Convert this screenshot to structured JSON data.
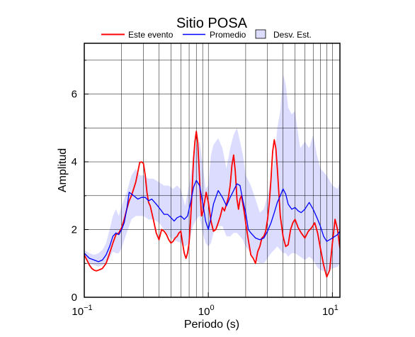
{
  "chart_data": {
    "type": "line",
    "title": "Sitio POSA",
    "xlabel": "Periodo (s)",
    "ylabel": "Amplitud",
    "x_scale": "log",
    "xlim": [
      0.1,
      11.5
    ],
    "ylim": [
      0,
      7.5
    ],
    "x_ticks": [
      {
        "value": 0.1,
        "base": "10",
        "exp": "−1"
      },
      {
        "value": 1,
        "base": "10",
        "exp": "0"
      },
      {
        "value": 10,
        "base": "10",
        "exp": "1"
      }
    ],
    "y_ticks": [
      0,
      2,
      4,
      6
    ],
    "grid": true,
    "legend_position": "top",
    "legend": {
      "este": "Este evento",
      "promedio": "Promedio",
      "desv": "Desv. Est."
    },
    "colors": {
      "este": "#ff0000",
      "promedio": "#0000ff",
      "band": "#dcdcff",
      "band_edge": "#8080c0"
    },
    "series": [
      {
        "name": "Este evento",
        "x": [
          0.1,
          0.105,
          0.11,
          0.115,
          0.12,
          0.125,
          0.13,
          0.14,
          0.15,
          0.16,
          0.17,
          0.18,
          0.19,
          0.2,
          0.21,
          0.22,
          0.23,
          0.24,
          0.25,
          0.26,
          0.27,
          0.28,
          0.29,
          0.3,
          0.31,
          0.32,
          0.33,
          0.34,
          0.36,
          0.38,
          0.4,
          0.42,
          0.44,
          0.46,
          0.48,
          0.5,
          0.52,
          0.54,
          0.56,
          0.58,
          0.6,
          0.62,
          0.64,
          0.66,
          0.68,
          0.7,
          0.72,
          0.74,
          0.76,
          0.78,
          0.8,
          0.82,
          0.84,
          0.86,
          0.88,
          0.9,
          0.93,
          0.96,
          1.0,
          1.05,
          1.1,
          1.15,
          1.2,
          1.25,
          1.3,
          1.35,
          1.4,
          1.45,
          1.5,
          1.55,
          1.6,
          1.65,
          1.7,
          1.75,
          1.8,
          1.85,
          1.9,
          1.95,
          2.0,
          2.1,
          2.2,
          2.3,
          2.4,
          2.5,
          2.6,
          2.7,
          2.8,
          2.9,
          3.0,
          3.1,
          3.2,
          3.3,
          3.4,
          3.5,
          3.6,
          3.7,
          3.8,
          4.0,
          4.2,
          4.4,
          4.6,
          4.8,
          5.0,
          5.3,
          5.6,
          6.0,
          6.4,
          6.8,
          7.2,
          7.6,
          8.0,
          8.5,
          9.0,
          9.5,
          10.0,
          10.5,
          11.0,
          11.5
        ],
        "y": [
          1.25,
          1.1,
          0.95,
          0.85,
          0.8,
          0.78,
          0.8,
          0.85,
          1.0,
          1.3,
          1.6,
          1.85,
          1.9,
          2.05,
          2.3,
          2.6,
          2.85,
          3.0,
          3.2,
          3.4,
          3.7,
          3.98,
          4.0,
          3.95,
          3.6,
          3.1,
          2.8,
          2.7,
          2.3,
          1.9,
          1.7,
          2.0,
          1.95,
          1.85,
          1.7,
          1.6,
          1.65,
          1.75,
          1.8,
          1.9,
          1.95,
          1.6,
          1.3,
          1.15,
          1.3,
          1.6,
          2.3,
          3.2,
          4.1,
          4.6,
          4.9,
          4.6,
          3.9,
          3.1,
          2.4,
          2.5,
          2.8,
          3.1,
          2.8,
          2.25,
          1.95,
          2.0,
          2.2,
          2.4,
          2.65,
          2.55,
          2.75,
          2.95,
          3.3,
          3.9,
          4.2,
          3.7,
          2.9,
          2.6,
          2.9,
          3.0,
          2.75,
          2.5,
          2.2,
          1.7,
          1.25,
          1.15,
          1.0,
          1.35,
          1.5,
          1.75,
          1.8,
          1.95,
          2.3,
          2.8,
          3.5,
          4.3,
          4.65,
          4.4,
          3.8,
          3.1,
          2.4,
          1.8,
          1.5,
          1.55,
          2.0,
          2.2,
          2.3,
          2.05,
          1.9,
          1.75,
          1.95,
          2.05,
          2.2,
          1.9,
          1.45,
          0.95,
          0.6,
          0.8,
          1.6,
          2.3,
          2.0,
          1.45
        ]
      },
      {
        "name": "Promedio",
        "x": [
          0.1,
          0.11,
          0.12,
          0.13,
          0.14,
          0.15,
          0.16,
          0.17,
          0.18,
          0.19,
          0.2,
          0.21,
          0.22,
          0.23,
          0.25,
          0.27,
          0.29,
          0.31,
          0.33,
          0.35,
          0.38,
          0.41,
          0.44,
          0.47,
          0.5,
          0.53,
          0.56,
          0.6,
          0.64,
          0.68,
          0.72,
          0.76,
          0.8,
          0.85,
          0.9,
          0.95,
          1.0,
          1.05,
          1.1,
          1.2,
          1.3,
          1.4,
          1.5,
          1.6,
          1.7,
          1.8,
          1.9,
          2.0,
          2.1,
          2.2,
          2.4,
          2.6,
          2.8,
          3.0,
          3.2,
          3.4,
          3.6,
          3.8,
          4.0,
          4.2,
          4.4,
          4.7,
          5.0,
          5.3,
          5.6,
          6.0,
          6.5,
          7.0,
          7.5,
          8.0,
          8.5,
          9.0,
          10.0,
          11.0,
          11.5
        ],
        "y": [
          1.3,
          1.15,
          1.1,
          1.05,
          1.1,
          1.25,
          1.5,
          1.8,
          1.9,
          1.85,
          2.0,
          2.2,
          2.6,
          3.1,
          3.0,
          2.9,
          2.95,
          2.95,
          2.85,
          2.9,
          2.75,
          2.6,
          2.45,
          2.45,
          2.35,
          2.25,
          2.35,
          2.4,
          2.3,
          2.4,
          2.8,
          3.25,
          3.45,
          3.3,
          2.8,
          2.25,
          2.0,
          2.35,
          2.75,
          3.15,
          2.95,
          2.7,
          2.95,
          3.15,
          3.35,
          3.3,
          2.85,
          2.5,
          2.0,
          1.9,
          1.75,
          1.7,
          1.75,
          1.95,
          2.2,
          2.5,
          2.8,
          3.0,
          3.2,
          3.05,
          2.75,
          2.6,
          2.65,
          2.55,
          2.5,
          2.6,
          2.8,
          2.6,
          2.35,
          2.1,
          1.8,
          1.65,
          1.75,
          1.85,
          1.95
        ]
      },
      {
        "name": "Desv. Est.",
        "x": [
          0.1,
          0.11,
          0.12,
          0.13,
          0.14,
          0.15,
          0.16,
          0.17,
          0.18,
          0.19,
          0.2,
          0.22,
          0.24,
          0.26,
          0.28,
          0.3,
          0.33,
          0.36,
          0.4,
          0.44,
          0.48,
          0.52,
          0.56,
          0.6,
          0.65,
          0.7,
          0.75,
          0.8,
          0.85,
          0.9,
          0.95,
          1.0,
          1.05,
          1.1,
          1.2,
          1.3,
          1.4,
          1.5,
          1.6,
          1.7,
          1.8,
          1.9,
          2.0,
          2.2,
          2.4,
          2.6,
          2.8,
          3.0,
          3.2,
          3.4,
          3.6,
          3.8,
          4.0,
          4.2,
          4.4,
          4.7,
          5.0,
          5.5,
          6.0,
          6.5,
          7.0,
          7.5,
          8.0,
          9.0,
          10.0,
          11.0,
          11.5
        ],
        "upper": [
          1.4,
          1.3,
          1.25,
          1.3,
          1.4,
          1.6,
          2.0,
          2.4,
          2.6,
          2.4,
          2.7,
          3.1,
          3.6,
          3.8,
          3.6,
          3.6,
          3.5,
          3.5,
          3.4,
          3.3,
          3.3,
          3.2,
          3.3,
          3.2,
          2.7,
          3.3,
          4.0,
          4.5,
          4.6,
          3.9,
          3.2,
          3.3,
          4.2,
          4.5,
          4.7,
          4.4,
          3.8,
          4.4,
          4.8,
          5.0,
          4.6,
          4.2,
          3.6,
          3.3,
          2.9,
          2.5,
          2.6,
          3.0,
          3.5,
          4.0,
          5.0,
          5.5,
          6.6,
          6.3,
          5.6,
          5.4,
          5.5,
          4.4,
          4.6,
          4.4,
          4.8,
          4.2,
          3.8,
          3.6,
          3.3,
          3.2,
          3.4
        ],
        "lower": [
          1.2,
          1.0,
          0.95,
          0.9,
          0.95,
          1.0,
          1.15,
          1.35,
          1.3,
          1.3,
          1.45,
          1.9,
          2.3,
          2.4,
          2.4,
          2.4,
          2.3,
          2.3,
          2.2,
          2.0,
          1.8,
          1.7,
          1.65,
          1.6,
          1.5,
          1.6,
          2.1,
          2.3,
          2.4,
          1.9,
          1.6,
          1.5,
          1.6,
          1.9,
          2.1,
          2.1,
          1.8,
          1.8,
          1.9,
          1.9,
          1.8,
          1.7,
          1.5,
          1.3,
          1.1,
          1.0,
          1.0,
          1.15,
          1.3,
          1.4,
          1.5,
          1.4,
          1.3,
          1.3,
          1.2,
          1.3,
          1.3,
          1.2,
          1.1,
          1.2,
          1.1,
          0.9,
          0.8,
          0.75,
          0.85,
          0.9,
          1.0
        ]
      }
    ]
  }
}
